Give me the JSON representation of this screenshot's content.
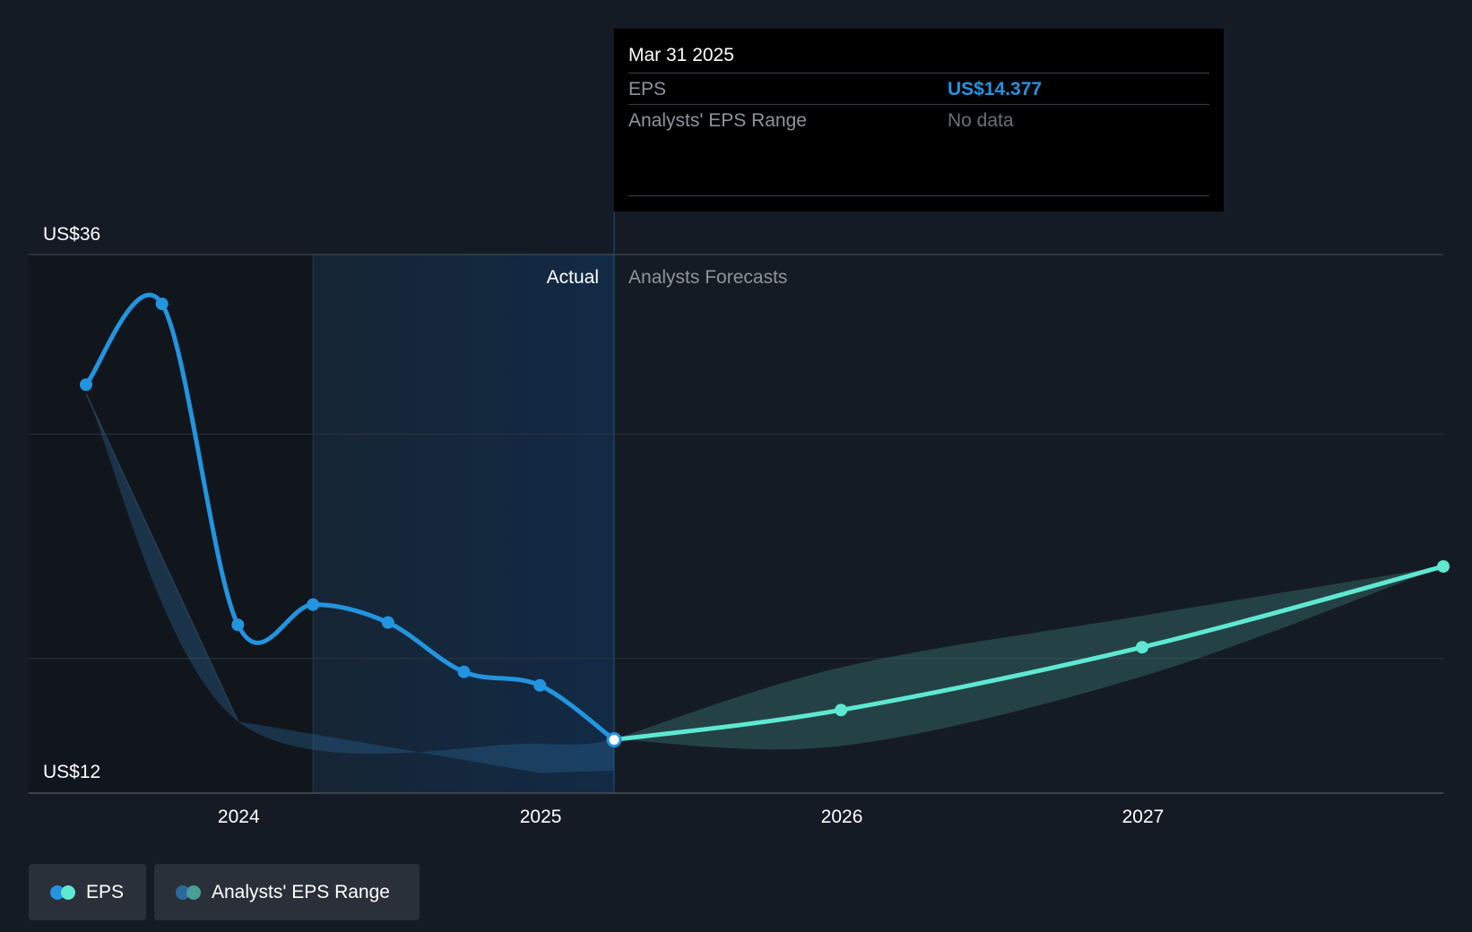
{
  "chart_data": {
    "type": "line",
    "y_axis": {
      "ylim": [
        12,
        36
      ],
      "tick_labels": [
        "US$36",
        "US$12"
      ],
      "unit": "US$"
    },
    "x_axis": {
      "tick_labels": [
        "2024",
        "2025",
        "2026",
        "2027"
      ],
      "xlim": [
        "2023-06-30",
        "2027-12-31"
      ]
    },
    "regions": {
      "actual_label": "Actual",
      "forecast_label": "Analysts Forecasts",
      "divider_date": "2025-03-31"
    },
    "series": [
      {
        "name": "EPS",
        "kind": "actual",
        "color": "#2394df",
        "points": [
          {
            "x": "2023-06-30",
            "y": 30.2
          },
          {
            "x": "2023-09-30",
            "y": 33.8
          },
          {
            "x": "2023-12-31",
            "y": 19.5
          },
          {
            "x": "2024-03-31",
            "y": 20.4
          },
          {
            "x": "2024-06-30",
            "y": 19.6
          },
          {
            "x": "2024-09-30",
            "y": 17.4
          },
          {
            "x": "2024-12-31",
            "y": 16.8
          },
          {
            "x": "2025-03-31",
            "y": 14.377
          }
        ]
      },
      {
        "name": "EPS",
        "kind": "forecast",
        "color": "#5ee8d1",
        "points": [
          {
            "x": "2025-03-31",
            "y": 14.377
          },
          {
            "x": "2025-12-31",
            "y": 15.7
          },
          {
            "x": "2026-12-31",
            "y": 18.5
          },
          {
            "x": "2027-12-31",
            "y": 22.1
          }
        ]
      }
    ],
    "range_band": {
      "name": "Analysts' EPS Range",
      "color": "#4a9e96",
      "upper": [
        {
          "x": "2025-03-31",
          "y": 14.4
        },
        {
          "x": "2025-12-31",
          "y": 17.6
        },
        {
          "x": "2026-12-31",
          "y": 19.9
        },
        {
          "x": "2027-12-31",
          "y": 22.1
        }
      ],
      "lower": [
        {
          "x": "2025-03-31",
          "y": 14.4
        },
        {
          "x": "2025-12-31",
          "y": 14.1
        },
        {
          "x": "2026-12-31",
          "y": 17.2
        },
        {
          "x": "2027-12-31",
          "y": 22.1
        }
      ]
    },
    "past_band": {
      "upper": [
        {
          "x": "2023-06-30",
          "y": 29.8
        },
        {
          "x": "2023-12-31",
          "y": 15.2
        },
        {
          "x": "2024-12-31",
          "y": 14.2
        },
        {
          "x": "2025-03-31",
          "y": 14.4
        }
      ],
      "lower": [
        {
          "x": "2023-12-31",
          "y": 15.2
        },
        {
          "x": "2024-12-31",
          "y": 12.9
        },
        {
          "x": "2025-03-31",
          "y": 13.0
        }
      ]
    },
    "grid": true
  },
  "tooltip": {
    "date": "Mar 31 2025",
    "eps_label": "EPS",
    "eps_value": "US$14.377",
    "range_label": "Analysts' EPS Range",
    "range_value": "No data"
  },
  "legend": [
    {
      "label": "EPS",
      "colors": [
        "#2394df",
        "#5ee8d1"
      ]
    },
    {
      "label": "Analysts' EPS Range",
      "colors": [
        "#2a6a9e",
        "#4a9e96"
      ]
    }
  ]
}
